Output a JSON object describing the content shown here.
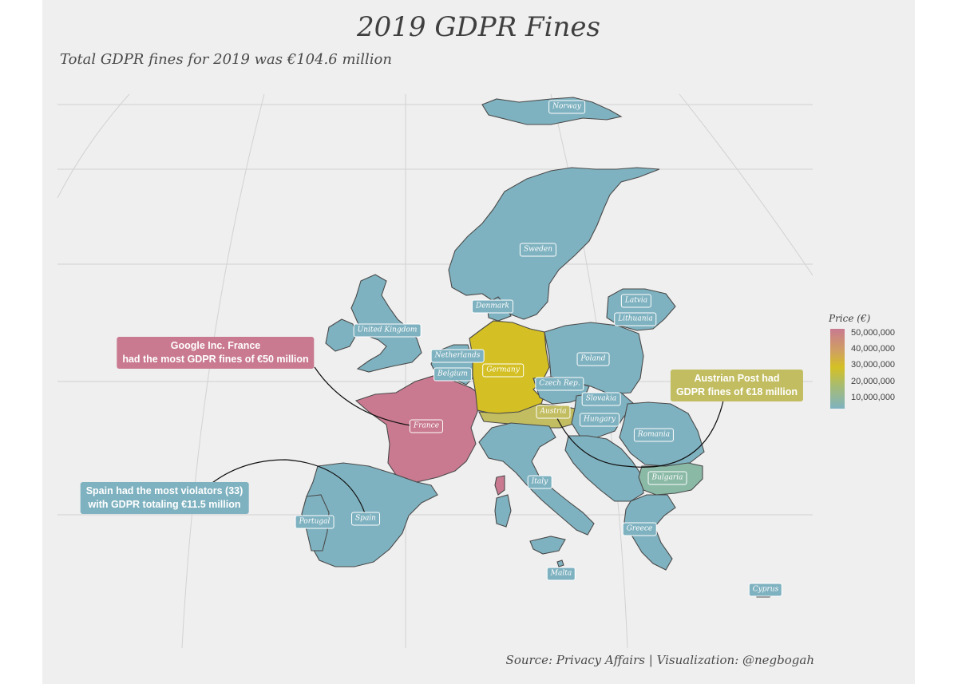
{
  "title": "2019 GDPR Fines",
  "subtitle": "Total GDPR fines for 2019 was €104.6 million",
  "caption": "Source: Privacy Affairs | Visualization: @negbogah",
  "colors": {
    "panel_bg": "#efefef",
    "low": "#7fb2c0",
    "mid": "#d4c024",
    "high": "#c97a90",
    "austria": "#c2bd60",
    "bulgaria": "#8ab9a6",
    "grid": "#d2d2d2"
  },
  "legend": {
    "title": "Price (€)",
    "ticks": [
      "50,000,000",
      "40,000,000",
      "30,000,000",
      "20,000,000",
      "10,000,000"
    ]
  },
  "countries": [
    {
      "label": "Norway"
    },
    {
      "label": "Sweden"
    },
    {
      "label": "Denmark"
    },
    {
      "label": "Latvia"
    },
    {
      "label": "Lithuania"
    },
    {
      "label": "United Kingdom"
    },
    {
      "label": "Netherlands"
    },
    {
      "label": "Belgium"
    },
    {
      "label": "Germany"
    },
    {
      "label": "Poland"
    },
    {
      "label": "Czech Rep."
    },
    {
      "label": "Slovakia"
    },
    {
      "label": "Austria"
    },
    {
      "label": "Hungary"
    },
    {
      "label": "France"
    },
    {
      "label": "Romania"
    },
    {
      "label": "Italy"
    },
    {
      "label": "Bulgaria"
    },
    {
      "label": "Spain"
    },
    {
      "label": "Portugal"
    },
    {
      "label": "Greece"
    },
    {
      "label": "Malta"
    },
    {
      "label": "Cyprus"
    }
  ],
  "annotations": {
    "france": {
      "line1": "Google Inc. France",
      "line2": "had the most GDPR fines of €50 million"
    },
    "austria": {
      "line1": "Austrian Post had",
      "line2": "GDPR fines of €18 million"
    },
    "spain": {
      "line1": "Spain had the most violators (33)",
      "line2": "with GDPR totaling €11.5 million"
    }
  }
}
